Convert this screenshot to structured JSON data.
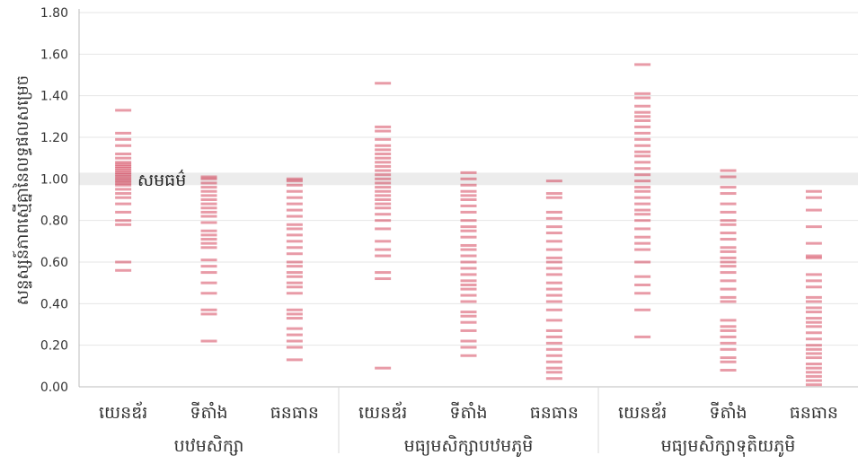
{
  "chart_data": {
    "type": "strip",
    "ylabel": "សន្ទស្សន៍ភាពស្មើគ្នានៃលទ្ធផលសម្រេច",
    "ylim": [
      0,
      1.8
    ],
    "yticks": [
      "0.00",
      "0.20",
      "0.40",
      "0.60",
      "0.80",
      "1.00",
      "1.20",
      "1.40",
      "1.60",
      "1.80"
    ],
    "parity_label": "សមធម៌",
    "parity_band": [
      0.97,
      1.03
    ],
    "categories": [
      "យេនឌ័រ",
      "ទីតាំង",
      "ធនធាន"
    ],
    "groups": [
      {
        "label": "បឋមសិក្សា",
        "series": [
          {
            "category": "យេនឌ័រ",
            "values": [
              0.56,
              0.6,
              0.78,
              0.8,
              0.84,
              0.88,
              0.91,
              0.93,
              0.95,
              0.97,
              0.98,
              0.99,
              1.0,
              1.01,
              1.02,
              1.03,
              1.04,
              1.05,
              1.06,
              1.07,
              1.08,
              1.1,
              1.12,
              1.16,
              1.19,
              1.22,
              1.33
            ]
          },
          {
            "category": "ទីតាំង",
            "values": [
              0.22,
              0.35,
              0.37,
              0.45,
              0.5,
              0.55,
              0.58,
              0.61,
              0.67,
              0.69,
              0.71,
              0.73,
              0.75,
              0.79,
              0.82,
              0.84,
              0.86,
              0.88,
              0.9,
              0.92,
              0.94,
              0.96,
              0.98,
              1.0,
              1.01
            ]
          },
          {
            "category": "ធនធាន",
            "values": [
              0.13,
              0.19,
              0.22,
              0.25,
              0.28,
              0.33,
              0.35,
              0.37,
              0.45,
              0.48,
              0.5,
              0.53,
              0.55,
              0.58,
              0.6,
              0.64,
              0.67,
              0.7,
              0.73,
              0.76,
              0.78,
              0.82,
              0.85,
              0.88,
              0.91,
              0.94,
              0.97,
              0.99,
              1.0
            ]
          }
        ]
      },
      {
        "label": "មធ្យមសិក្សាបឋមភូមិ",
        "series": [
          {
            "category": "យេនឌ័រ",
            "values": [
              0.09,
              0.52,
              0.55,
              0.63,
              0.66,
              0.7,
              0.76,
              0.8,
              0.83,
              0.86,
              0.88,
              0.9,
              0.92,
              0.94,
              0.96,
              0.98,
              1.0,
              1.02,
              1.04,
              1.06,
              1.08,
              1.1,
              1.12,
              1.14,
              1.16,
              1.19,
              1.23,
              1.25,
              1.46
            ]
          },
          {
            "category": "ទីតាំង",
            "values": [
              0.15,
              0.19,
              0.22,
              0.27,
              0.31,
              0.34,
              0.36,
              0.41,
              0.44,
              0.47,
              0.49,
              0.51,
              0.54,
              0.57,
              0.6,
              0.63,
              0.66,
              0.68,
              0.72,
              0.75,
              0.77,
              0.8,
              0.84,
              0.87,
              0.9,
              0.92,
              0.94,
              0.97,
              1.0,
              1.03
            ]
          },
          {
            "category": "ធនធាន",
            "values": [
              0.04,
              0.07,
              0.09,
              0.12,
              0.15,
              0.18,
              0.21,
              0.24,
              0.27,
              0.32,
              0.37,
              0.41,
              0.44,
              0.47,
              0.5,
              0.54,
              0.57,
              0.6,
              0.62,
              0.66,
              0.7,
              0.74,
              0.77,
              0.81,
              0.84,
              0.91,
              0.93,
              0.99
            ]
          }
        ]
      },
      {
        "label": "មធ្យមសិក្សាទុតិយភូមិ",
        "series": [
          {
            "category": "យេនឌ័រ",
            "values": [
              0.24,
              0.37,
              0.45,
              0.49,
              0.53,
              0.6,
              0.66,
              0.69,
              0.72,
              0.76,
              0.8,
              0.83,
              0.85,
              0.88,
              0.91,
              0.94,
              0.96,
              0.99,
              1.02,
              1.05,
              1.08,
              1.11,
              1.13,
              1.16,
              1.19,
              1.22,
              1.25,
              1.28,
              1.3,
              1.32,
              1.35,
              1.39,
              1.41,
              1.55
            ]
          },
          {
            "category": "ទីតាំង",
            "values": [
              0.08,
              0.12,
              0.14,
              0.18,
              0.21,
              0.24,
              0.27,
              0.29,
              0.32,
              0.41,
              0.43,
              0.47,
              0.51,
              0.55,
              0.58,
              0.6,
              0.62,
              0.65,
              0.67,
              0.71,
              0.74,
              0.78,
              0.8,
              0.84,
              0.88,
              0.93,
              0.96,
              1.01,
              1.04
            ]
          },
          {
            "category": "ធនធាន",
            "values": [
              0.01,
              0.03,
              0.05,
              0.07,
              0.09,
              0.11,
              0.14,
              0.16,
              0.18,
              0.2,
              0.23,
              0.26,
              0.29,
              0.31,
              0.33,
              0.36,
              0.38,
              0.41,
              0.43,
              0.48,
              0.51,
              0.54,
              0.62,
              0.63,
              0.69,
              0.77,
              0.85,
              0.91,
              0.94
            ]
          }
        ]
      }
    ],
    "colors": {
      "mark": "#c8102e",
      "grid": "#e6e6e6",
      "band": "#ececec",
      "axis": "#bdbdbd",
      "text": "#333333"
    },
    "grid": true
  }
}
